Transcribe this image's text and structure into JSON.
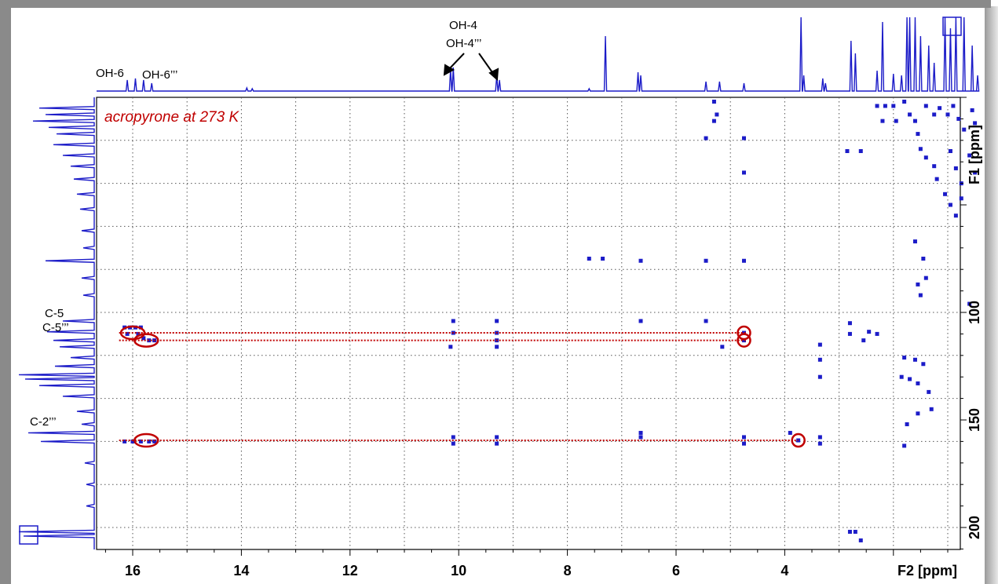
{
  "chart_data": {
    "type": "heatmap",
    "subtype": "2D NMR HMBC contour plot",
    "title": "acropyrone at 273 K",
    "xlabel": "F2 [ppm]",
    "ylabel": "F1 [ppm]",
    "xlim": [
      16.5,
      0.3
    ],
    "ylim": [
      0,
      210
    ],
    "x_axis_reversed": true,
    "y_axis_inverted": true,
    "xticks": [
      16,
      14,
      12,
      10,
      8,
      6,
      4
    ],
    "yticks": [
      100,
      150,
      200
    ],
    "grid": true,
    "top_projection_labels": {
      "oh6": "OH-6",
      "oh6b": "OH-6’’’",
      "oh4": "OH-4",
      "oh4b": "OH-4’’’"
    },
    "left_projection_labels": {
      "c5": "C-5",
      "c5b": "C-5’’’",
      "c2b": "C-2’’’"
    },
    "correlation_lines": [
      {
        "f1": 109.5,
        "from_f2": 16.25,
        "to_f2": 4.7
      },
      {
        "f1": 113,
        "from_f2": 16.25,
        "to_f2": 4.7
      },
      {
        "f1": 159.5,
        "from_f2": 16.25,
        "to_f2": 3.75
      }
    ],
    "highlight_circles": [
      {
        "f2": 16.0,
        "f1": 109.5
      },
      {
        "f2": 15.75,
        "f1": 113
      },
      {
        "f2": 15.75,
        "f1": 159.5
      },
      {
        "f2": 4.75,
        "f1": 109.5
      },
      {
        "f2": 4.75,
        "f1": 113
      },
      {
        "f2": 3.75,
        "f1": 159.5
      }
    ],
    "cross_peaks": [
      [
        16.15,
        107
      ],
      [
        16.05,
        107
      ],
      [
        15.95,
        107
      ],
      [
        15.85,
        107
      ],
      [
        16.1,
        110
      ],
      [
        15.9,
        110
      ],
      [
        15.8,
        112
      ],
      [
        15.7,
        113
      ],
      [
        15.6,
        113
      ],
      [
        16.15,
        160
      ],
      [
        16.0,
        160
      ],
      [
        15.85,
        160
      ],
      [
        15.7,
        160
      ],
      [
        15.6,
        160
      ],
      [
        10.1,
        104
      ],
      [
        10.1,
        109.5
      ],
      [
        10.15,
        116
      ],
      [
        10.1,
        158
      ],
      [
        10.1,
        161
      ],
      [
        9.3,
        104
      ],
      [
        9.3,
        109.5
      ],
      [
        9.3,
        113
      ],
      [
        9.3,
        116
      ],
      [
        9.3,
        158
      ],
      [
        9.3,
        161
      ],
      [
        7.6,
        75
      ],
      [
        7.35,
        75
      ],
      [
        6.65,
        76
      ],
      [
        6.65,
        104
      ],
      [
        6.65,
        156
      ],
      [
        6.65,
        158
      ],
      [
        5.3,
        2
      ],
      [
        5.25,
        8
      ],
      [
        5.3,
        11
      ],
      [
        5.45,
        19
      ],
      [
        5.45,
        76
      ],
      [
        5.45,
        104
      ],
      [
        5.15,
        116
      ],
      [
        4.75,
        19
      ],
      [
        4.75,
        35
      ],
      [
        4.75,
        76
      ],
      [
        4.75,
        158
      ],
      [
        4.75,
        161
      ],
      [
        4.75,
        109.5
      ],
      [
        4.75,
        113
      ],
      [
        3.9,
        156
      ],
      [
        3.75,
        159.5
      ],
      [
        3.35,
        115
      ],
      [
        3.35,
        122
      ],
      [
        3.35,
        130
      ],
      [
        3.35,
        158
      ],
      [
        3.35,
        161
      ],
      [
        2.8,
        105
      ],
      [
        2.8,
        110
      ],
      [
        2.8,
        202
      ],
      [
        2.7,
        202
      ],
      [
        2.6,
        206
      ],
      [
        2.55,
        113
      ],
      [
        2.45,
        109
      ],
      [
        2.3,
        110
      ],
      [
        2.85,
        25
      ],
      [
        2.6,
        25
      ],
      [
        2.3,
        4
      ],
      [
        2.15,
        4
      ],
      [
        2.2,
        11
      ],
      [
        2.0,
        4
      ],
      [
        1.95,
        11
      ],
      [
        1.8,
        2
      ],
      [
        1.7,
        8
      ],
      [
        1.6,
        11
      ],
      [
        1.55,
        17
      ],
      [
        1.4,
        4
      ],
      [
        1.25,
        8
      ],
      [
        1.15,
        5
      ],
      [
        1.0,
        8
      ],
      [
        0.9,
        4
      ],
      [
        0.8,
        10
      ],
      [
        0.7,
        15
      ],
      [
        0.55,
        6
      ],
      [
        0.5,
        12
      ],
      [
        1.5,
        24
      ],
      [
        1.4,
        28
      ],
      [
        1.25,
        32
      ],
      [
        1.2,
        38
      ],
      [
        0.95,
        25
      ],
      [
        0.85,
        33
      ],
      [
        0.75,
        40
      ],
      [
        0.6,
        27
      ],
      [
        0.5,
        35
      ],
      [
        1.05,
        45
      ],
      [
        0.95,
        50
      ],
      [
        0.85,
        55
      ],
      [
        0.75,
        47
      ],
      [
        1.6,
        67
      ],
      [
        1.45,
        75
      ],
      [
        1.4,
        84
      ],
      [
        1.55,
        87
      ],
      [
        1.5,
        92
      ],
      [
        0.6,
        96
      ],
      [
        1.8,
        121
      ],
      [
        1.6,
        122
      ],
      [
        1.45,
        124
      ],
      [
        1.85,
        130
      ],
      [
        1.7,
        131
      ],
      [
        1.55,
        133
      ],
      [
        1.35,
        137
      ],
      [
        1.3,
        145
      ],
      [
        1.55,
        147
      ],
      [
        1.75,
        152
      ],
      [
        1.8,
        162
      ]
    ]
  }
}
